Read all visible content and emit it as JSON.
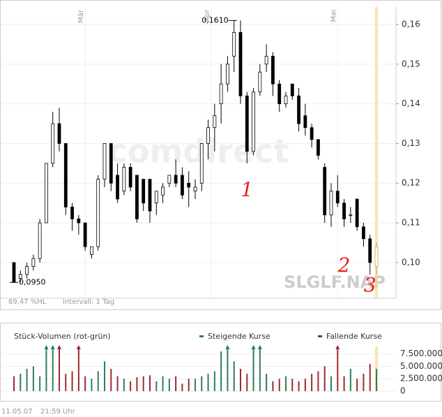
{
  "chart_data": {
    "type": "candlestick",
    "watermark": "comdirect",
    "symbol": "SLGLF.NAP",
    "footer_left": "69,47 %HL",
    "footer_mid": "Intervall: 1 Tag",
    "timestamp_date": "11.05.07",
    "timestamp_time": "21:59 Uhr",
    "ylim": [
      0.091,
      0.1644
    ],
    "yticks": [
      {
        "value": 0.1,
        "label": "0,10"
      },
      {
        "value": 0.11,
        "label": "0,11"
      },
      {
        "value": 0.12,
        "label": "0,12"
      },
      {
        "value": 0.13,
        "label": "0,13"
      },
      {
        "value": 0.14,
        "label": "0,14"
      },
      {
        "value": 0.15,
        "label": "0,15"
      },
      {
        "value": 0.16,
        "label": "0,16"
      }
    ],
    "month_markers": [
      {
        "label": "Mär",
        "index": 11
      },
      {
        "label": "Apr",
        "index": 30.5
      },
      {
        "label": "Mai",
        "index": 50
      }
    ],
    "high_label": {
      "value": 0.161,
      "label": "0,1610",
      "index": 34
    },
    "low_label": {
      "value": 0.095,
      "label": "0,0950",
      "index": 0
    },
    "highlight_index": 56,
    "up_color": "#ffffff",
    "down_color": "#000000",
    "highlight_color": "#f5d98a",
    "handwritten": [
      {
        "label": "1",
        "index": 36,
        "value": 0.118
      },
      {
        "label": "2",
        "index": 51,
        "value": 0.099
      },
      {
        "label": "3",
        "index": 55,
        "value": 0.094
      }
    ],
    "candles": [
      [
        0.1,
        0.1,
        0.095,
        0.095
      ],
      [
        0.096,
        0.098,
        0.095,
        0.097
      ],
      [
        0.097,
        0.1,
        0.096,
        0.099
      ],
      [
        0.099,
        0.102,
        0.098,
        0.101
      ],
      [
        0.101,
        0.111,
        0.1,
        0.11
      ],
      [
        0.11,
        0.125,
        0.11,
        0.125
      ],
      [
        0.125,
        0.138,
        0.124,
        0.135
      ],
      [
        0.135,
        0.139,
        0.128,
        0.13
      ],
      [
        0.13,
        0.13,
        0.112,
        0.114
      ],
      [
        0.114,
        0.115,
        0.108,
        0.111
      ],
      [
        0.111,
        0.112,
        0.107,
        0.11
      ],
      [
        0.11,
        0.11,
        0.103,
        0.104
      ],
      [
        0.102,
        0.104,
        0.101,
        0.104
      ],
      [
        0.104,
        0.122,
        0.103,
        0.121
      ],
      [
        0.121,
        0.13,
        0.119,
        0.13
      ],
      [
        0.13,
        0.13,
        0.118,
        0.12
      ],
      [
        0.122,
        0.125,
        0.115,
        0.116
      ],
      [
        0.118,
        0.125,
        0.117,
        0.124
      ],
      [
        0.124,
        0.125,
        0.118,
        0.119
      ],
      [
        0.122,
        0.122,
        0.11,
        0.111
      ],
      [
        0.121,
        0.121,
        0.113,
        0.115
      ],
      [
        0.121,
        0.121,
        0.11,
        0.113
      ],
      [
        0.115,
        0.118,
        0.112,
        0.118
      ],
      [
        0.117,
        0.12,
        0.115,
        0.119
      ],
      [
        0.12,
        0.122,
        0.119,
        0.122
      ],
      [
        0.122,
        0.126,
        0.119,
        0.12
      ],
      [
        0.122,
        0.124,
        0.116,
        0.117
      ],
      [
        0.12,
        0.123,
        0.114,
        0.119
      ],
      [
        0.118,
        0.121,
        0.116,
        0.119
      ],
      [
        0.12,
        0.13,
        0.118,
        0.13
      ],
      [
        0.13,
        0.136,
        0.126,
        0.134
      ],
      [
        0.134,
        0.14,
        0.128,
        0.137
      ],
      [
        0.14,
        0.15,
        0.135,
        0.145
      ],
      [
        0.145,
        0.152,
        0.143,
        0.15
      ],
      [
        0.152,
        0.161,
        0.148,
        0.158
      ],
      [
        0.158,
        0.161,
        0.14,
        0.142
      ],
      [
        0.142,
        0.143,
        0.125,
        0.128
      ],
      [
        0.128,
        0.144,
        0.127,
        0.143
      ],
      [
        0.143,
        0.15,
        0.142,
        0.148
      ],
      [
        0.15,
        0.155,
        0.148,
        0.152
      ],
      [
        0.152,
        0.153,
        0.142,
        0.145
      ],
      [
        0.145,
        0.146,
        0.138,
        0.14
      ],
      [
        0.14,
        0.143,
        0.139,
        0.142
      ],
      [
        0.145,
        0.145,
        0.141,
        0.142
      ],
      [
        0.142,
        0.144,
        0.133,
        0.135
      ],
      [
        0.137,
        0.14,
        0.132,
        0.134
      ],
      [
        0.134,
        0.135,
        0.129,
        0.131
      ],
      [
        0.131,
        0.131,
        0.126,
        0.127
      ],
      [
        0.124,
        0.125,
        0.11,
        0.112
      ],
      [
        0.112,
        0.12,
        0.109,
        0.118
      ],
      [
        0.118,
        0.122,
        0.114,
        0.115
      ],
      [
        0.115,
        0.116,
        0.109,
        0.111
      ],
      [
        0.112,
        0.114,
        0.11,
        0.112
      ],
      [
        0.116,
        0.116,
        0.108,
        0.109
      ],
      [
        0.109,
        0.11,
        0.104,
        0.106
      ],
      [
        0.106,
        0.107,
        0.097,
        0.1
      ],
      [
        0.099,
        0.105,
        0.097,
        0.104
      ]
    ],
    "volume": {
      "title": "Stück-Volumen (rot-grün)",
      "legend_up": "Steigende Kurse",
      "legend_down": "Fallende Kurse",
      "up_color": "#2e7d5b",
      "down_color": "#a0282c",
      "ylim": [
        0,
        9000000
      ],
      "yticks": [
        {
          "value": 0,
          "label": "0"
        },
        {
          "value": 2500000,
          "label": "2.500.000"
        },
        {
          "value": 5000000,
          "label": "5.000.000"
        },
        {
          "value": 7500000,
          "label": "7.500.000"
        }
      ],
      "values": [
        3000000,
        3500000,
        4500000,
        5000000,
        3000000,
        9500000,
        9800000,
        9600000,
        3500000,
        4000000,
        9400000,
        3000000,
        2500000,
        4000000,
        6000000,
        4500000,
        3000000,
        2500000,
        2000000,
        2800000,
        3000000,
        3200000,
        2000000,
        3000000,
        2500000,
        3000000,
        1500000,
        2500000,
        2500000,
        3000000,
        3500000,
        4000000,
        8000000,
        10000000,
        6000000,
        4500000,
        3500000,
        9700000,
        9800000,
        3500000,
        2000000,
        2500000,
        3000000,
        2500000,
        2000000,
        2500000,
        3500000,
        4000000,
        5000000,
        3000000,
        10000000,
        3000000,
        4500000,
        2500000,
        3500000,
        5500000,
        4500000
      ]
    }
  }
}
